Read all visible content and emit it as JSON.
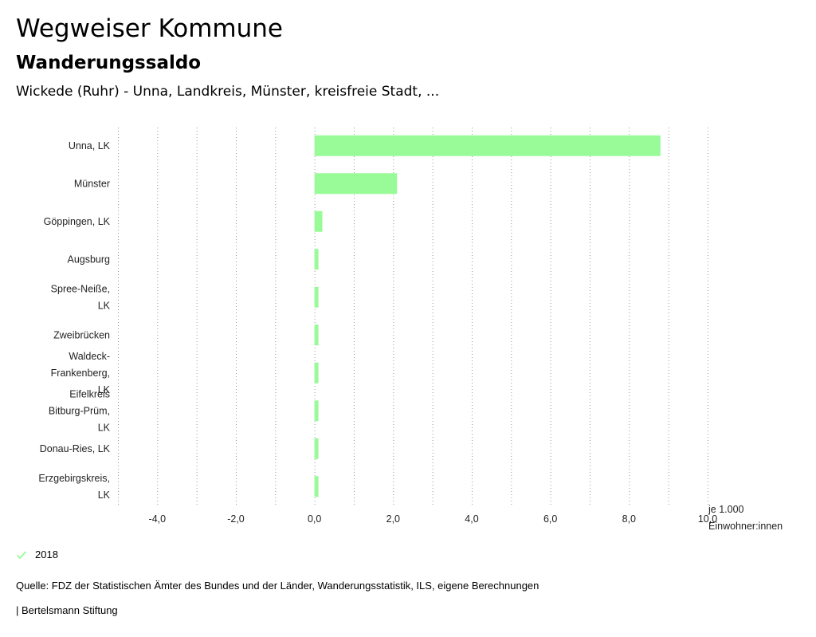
{
  "header": {
    "title": "Wegweiser Kommune",
    "subtitle": "Wanderungssaldo",
    "region": "Wickede (Ruhr) - Unna, Landkreis, Münster, kreisfreie Stadt, ..."
  },
  "chart_data": {
    "type": "bar",
    "orientation": "horizontal",
    "categories": [
      "Unna, LK",
      "Münster",
      "Göppingen, LK",
      "Augsburg",
      "Spree-Neiße, LK",
      "Zweibrücken",
      "Waldeck-Frankenberg, LK",
      "Eifelkreis Bitburg-Prüm, LK",
      "Donau-Ries, LK",
      "Erzgebirgskreis, LK"
    ],
    "category_lines": [
      [
        "Unna, LK"
      ],
      [
        "Münster"
      ],
      [
        "Göppingen, LK"
      ],
      [
        "Augsburg"
      ],
      [
        "Spree-Neiße,",
        "LK"
      ],
      [
        "Zweibrücken"
      ],
      [
        "Waldeck-",
        "Frankenberg,",
        "LK"
      ],
      [
        "Eifelkreis",
        "Bitburg-Prüm,",
        "LK"
      ],
      [
        "Donau-Ries, LK"
      ],
      [
        "Erzgebirgskreis,",
        "LK"
      ]
    ],
    "series": [
      {
        "name": "2018",
        "values": [
          8.8,
          2.1,
          0.2,
          0.1,
          0.1,
          0.1,
          0.1,
          0.1,
          0.1,
          0.1
        ]
      }
    ],
    "xlim": [
      -5.0,
      10.0
    ],
    "xticks": [
      -4.0,
      -2.0,
      0.0,
      2.0,
      4.0,
      6.0,
      8.0,
      10.0
    ],
    "xtick_labels": [
      "-4,0",
      "-2,0",
      "0,0",
      "2,0",
      "4,0",
      "6,0",
      "8,0",
      "10,0"
    ],
    "xlabel": [
      "je 1.000",
      "Einwohner:innen"
    ],
    "grid": true,
    "bar_color": "#98fb98",
    "grid_color": "#999999"
  },
  "legend": {
    "label": "2018",
    "color": "#98fb98"
  },
  "footer": {
    "source": "Quelle: FDZ der Statistischen Ämter des Bundes und der Länder, Wanderungsstatistik, ILS, eigene Berechnungen",
    "credit": "| Bertelsmann Stiftung"
  }
}
